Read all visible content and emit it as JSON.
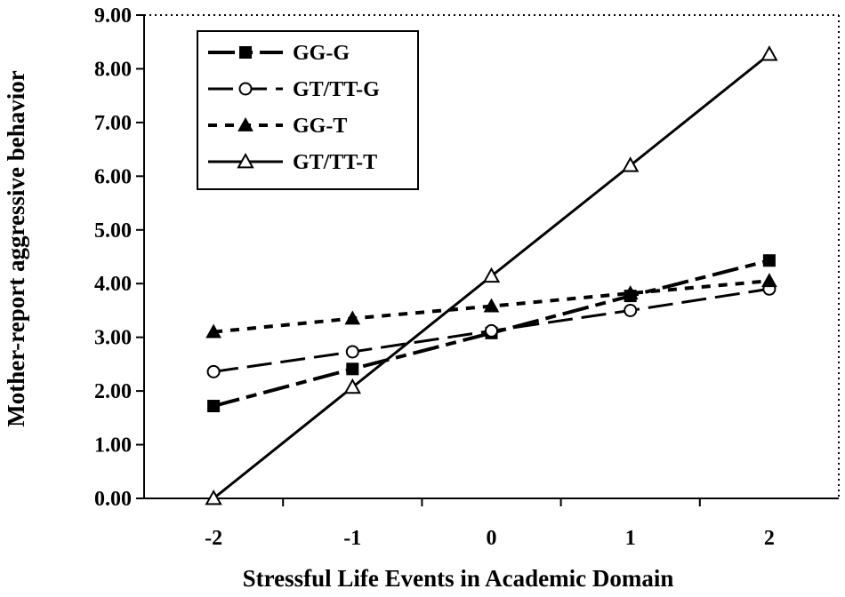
{
  "chart_data": {
    "type": "line",
    "title": "",
    "xlabel": "Stressful Life Events in Academic Domain",
    "ylabel": "Mother-report aggressive behavior",
    "x": [
      -2,
      -1,
      0,
      1,
      2
    ],
    "x_tick_labels": [
      "-2",
      "-1",
      "0",
      "1",
      "2"
    ],
    "xlim": [
      -2.5,
      2.5
    ],
    "ylim": [
      0,
      9
    ],
    "y_ticks": [
      0,
      1,
      2,
      3,
      4,
      5,
      6,
      7,
      8,
      9
    ],
    "y_tick_labels": [
      "0.00",
      "1.00",
      "2.00",
      "3.00",
      "4.00",
      "5.00",
      "6.00",
      "7.00",
      "8.00",
      "9.00"
    ],
    "grid": false,
    "legend_position": "top-left",
    "series": [
      {
        "name": "GG-G",
        "values": [
          1.72,
          2.41,
          3.08,
          3.77,
          4.43
        ],
        "marker": "filled-square",
        "line_style": "long-short-dash",
        "color": "#000000"
      },
      {
        "name": "GT/TT-G",
        "values": [
          2.36,
          2.73,
          3.12,
          3.5,
          3.9
        ],
        "marker": "open-circle",
        "line_style": "long-dash",
        "color": "#000000"
      },
      {
        "name": "GG-T",
        "values": [
          3.1,
          3.35,
          3.58,
          3.82,
          4.05
        ],
        "marker": "filled-triangle",
        "line_style": "short-dash",
        "color": "#000000"
      },
      {
        "name": "GT/TT-T",
        "values": [
          0.0,
          2.07,
          4.14,
          6.2,
          8.27
        ],
        "marker": "open-triangle",
        "line_style": "solid",
        "color": "#000000"
      }
    ]
  }
}
